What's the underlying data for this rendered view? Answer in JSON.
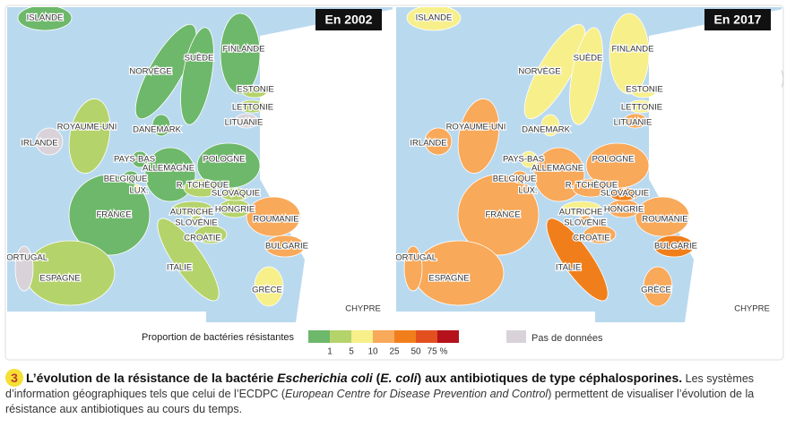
{
  "maps": [
    {
      "year_label": "En 2002",
      "colors": [
        "#6db86a",
        "#6db86a",
        "#6db86a",
        "#6db86a",
        "#b5d36b",
        "#b5d36b",
        "#d9d3d9",
        "#b5d36b",
        "#d9d3d9",
        "#6db86a",
        "#6db86a",
        "#6db86a",
        "#f7ef8a",
        "#6db86a",
        "#6db86a",
        "#b5d36b",
        "#b5d36b",
        "#6db86a",
        "#b5d36b",
        "#b5d36b",
        "#b5d36b",
        "#f8a95a",
        "#b5d36b",
        "#f8a95a",
        "#d9d3d9",
        "#b5d36b",
        "#b5d36b",
        "#f7ef8a",
        "#ffffff"
      ]
    },
    {
      "year_label": "En 2017",
      "colors": [
        "#f7ef8a",
        "#f7ef8a",
        "#f7ef8a",
        "#f7ef8a",
        "#f7ef8a",
        "#f7ef8a",
        "#f8a95a",
        "#f8a95a",
        "#f8a95a",
        "#f7ef8a",
        "#f7ef8a",
        "#f8a95a",
        "#f8a95a",
        "#f8a95a",
        "#f8a95a",
        "#f8a95a",
        "#f07f1b",
        "#f8a95a",
        "#f7ef8a",
        "#f8a95a",
        "#f8a95a",
        "#f8a95a",
        "#f8a95a",
        "#f07f1b",
        "#f8a95a",
        "#f8a95a",
        "#f07f1b",
        "#f8a95a",
        "#ffffff"
      ]
    }
  ],
  "countries": [
    "ISLANDE",
    "NORVÈGE",
    "SUÈDE",
    "FINLANDE",
    "ESTONIE",
    "LETTONIE",
    "LITUANIE",
    "ROYAUME-UNI",
    "IRLANDE",
    "DANEMARK",
    "PAYS-BAS",
    "ALLEMAGNE",
    "POLOGNE",
    "BELGIQUE",
    "LUX.",
    "R. TCHÈQUE",
    "SLOVAQUIE",
    "FRANCE",
    "AUTRICHE",
    "HONGRIE",
    "SLOVÉNIE",
    "ROUMANIE",
    "CROATIE",
    "BULGARIE",
    "PORTUGAL",
    "ESPAGNE",
    "ITALIE",
    "GRÈCE",
    "CHYPRE"
  ],
  "legend": {
    "title": "Proportion de bactéries résistantes",
    "colors": [
      "#6db86a",
      "#b5d36b",
      "#f7ef8a",
      "#f8a95a",
      "#f07f1b",
      "#e2501f",
      "#b5121b"
    ],
    "ticks": [
      "1",
      "5",
      "10",
      "25",
      "50",
      "75 %"
    ],
    "no_data_label": "Pas de données",
    "no_data_color": "#d9d3d9"
  },
  "figure_number": "3",
  "caption": {
    "title": [
      {
        "text": "L’évolution de la résistance de la bactérie ",
        "italic": false
      },
      {
        "text": "Escherichia coli",
        "italic": true
      },
      {
        "text": " (",
        "italic": false
      },
      {
        "text": "E. coli",
        "italic": true
      },
      {
        "text": ") aux antibiotiques de type céphalosporines.",
        "italic": false
      }
    ],
    "body": [
      {
        "text": " Les systèmes d’information géographiques tels que celui de l’ECDPC (",
        "italic": false
      },
      {
        "text": "European Centre for Disease Prevention and Control",
        "italic": true
      },
      {
        "text": ") permettent de visualiser l’évolution de la résistance aux antibiotiques au cours du temps.",
        "italic": false
      }
    ]
  }
}
